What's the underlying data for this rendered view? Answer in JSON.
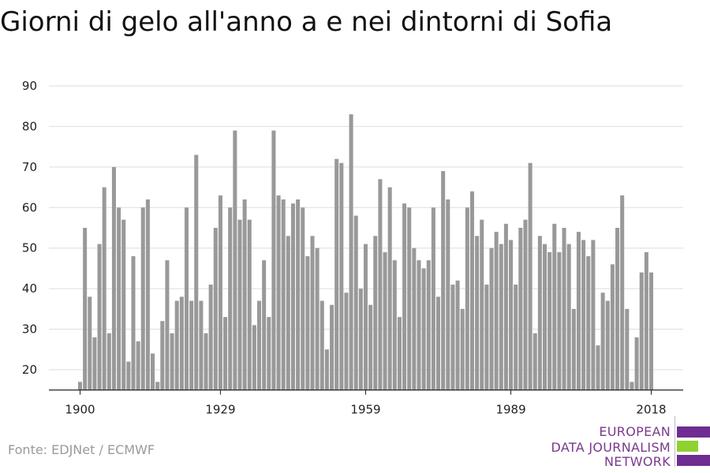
{
  "title": "Giorni di gelo all'anno a e nei dintorni di Sofia",
  "source": "Fonte: EDJNet / ECMWF",
  "logo": {
    "lines": [
      "EUROPEAN",
      "DATA JOURNALISM",
      "NETWORK"
    ],
    "colors": {
      "purple": "#6f2c91",
      "green": "#8fd12e"
    }
  },
  "colors": {
    "bar": "#999999",
    "grid": "#dddddd",
    "axis": "#222222"
  },
  "chart_data": {
    "type": "bar",
    "title": "Giorni di gelo all'anno a e nei dintorni di Sofia",
    "xlabel": "",
    "ylabel": "",
    "x_start": 1900,
    "x_end": 2018,
    "x_ticks": [
      1900,
      1929,
      1959,
      1989,
      2018
    ],
    "y_ticks": [
      20,
      30,
      40,
      50,
      60,
      70,
      80,
      90
    ],
    "ylim": [
      15,
      90
    ],
    "grid": true,
    "values": [
      17,
      55,
      38,
      28,
      51,
      65,
      29,
      70,
      60,
      57,
      22,
      48,
      27,
      60,
      62,
      24,
      17,
      32,
      47,
      29,
      37,
      38,
      60,
      37,
      73,
      37,
      29,
      41,
      55,
      63,
      33,
      60,
      79,
      57,
      62,
      57,
      31,
      37,
      47,
      33,
      79,
      63,
      62,
      53,
      61,
      62,
      60,
      48,
      53,
      50,
      37,
      25,
      36,
      72,
      71,
      39,
      83,
      58,
      40,
      51,
      36,
      53,
      67,
      49,
      65,
      47,
      33,
      61,
      60,
      50,
      47,
      45,
      47,
      60,
      38,
      69,
      62,
      41,
      42,
      35,
      60,
      64,
      53,
      57,
      41,
      50,
      54,
      51,
      56,
      52,
      41,
      55,
      57,
      71,
      29,
      53,
      51,
      49,
      56,
      49,
      55,
      51,
      35,
      54,
      52,
      48,
      52,
      26,
      39,
      37,
      46,
      55,
      63,
      35,
      17,
      28,
      44,
      49,
      44
    ]
  }
}
